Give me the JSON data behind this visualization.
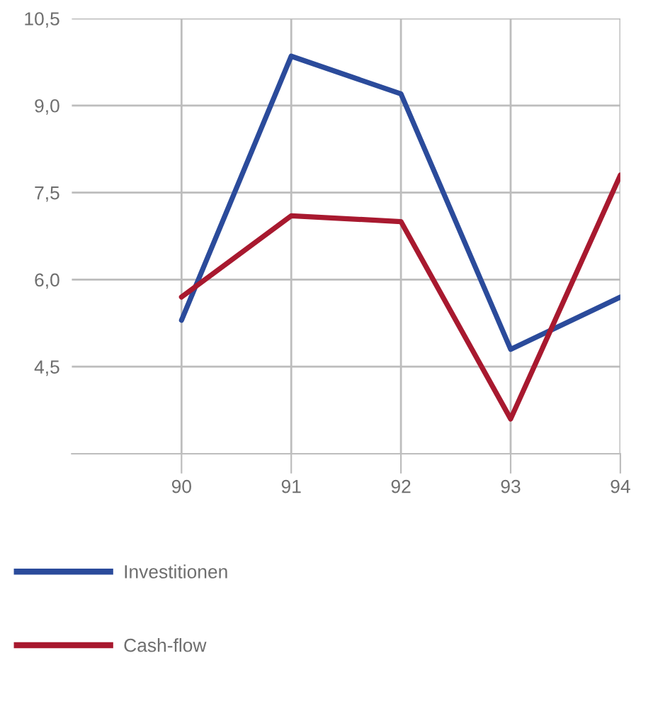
{
  "chart_data": {
    "type": "line",
    "x": [
      90,
      91,
      92,
      93,
      94
    ],
    "series": [
      {
        "name": "Investitionen",
        "color": "#2b4b9b",
        "values": [
          5.3,
          9.85,
          9.2,
          4.8,
          5.7
        ]
      },
      {
        "name": "Cash-flow",
        "color": "#a8192f",
        "values": [
          5.7,
          7.1,
          7.0,
          3.6,
          7.8
        ]
      }
    ],
    "xlim": [
      89,
      94
    ],
    "xticks": [
      90,
      91,
      92,
      93,
      94
    ],
    "ylim": [
      3.0,
      10.5
    ],
    "yticks": [
      {
        "value": 4.5,
        "label": "4,5"
      },
      {
        "value": 6.0,
        "label": "6,0"
      },
      {
        "value": 7.5,
        "label": "7,5"
      },
      {
        "value": 9.0,
        "label": "9,0"
      },
      {
        "value": 10.5,
        "label": "10,5"
      }
    ],
    "grid": true,
    "legend": "bottom left",
    "line_style": "solid"
  }
}
